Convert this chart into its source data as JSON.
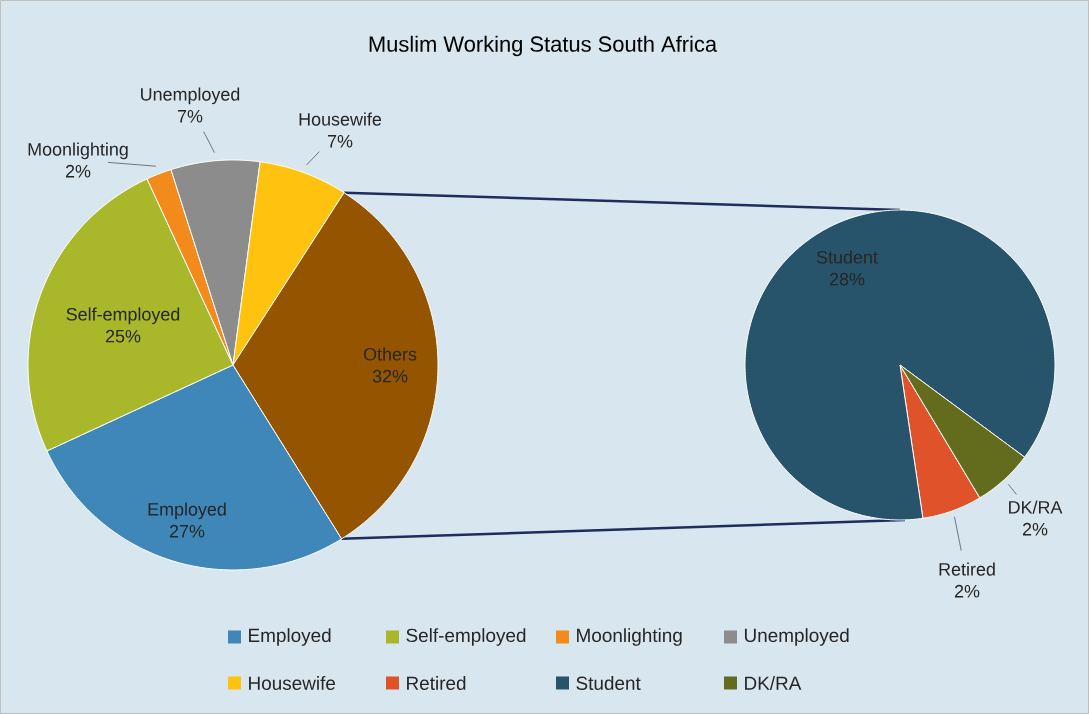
{
  "chart_data": [
    {
      "type": "pie",
      "title": "Muslim Working Status South Africa",
      "categories": [
        "Employed",
        "Self-employed",
        "Moonlighting",
        "Unemployed",
        "Housewife",
        "Others"
      ],
      "values": [
        27,
        25,
        2,
        7,
        7,
        32
      ],
      "colors": [
        "#3f87b8",
        "#a8b82a",
        "#f28a1c",
        "#8c8c8c",
        "#ffc20e",
        "#955400"
      ],
      "value_labels": [
        "27%",
        "25%",
        "2%",
        "7%",
        "7%",
        "32%"
      ],
      "legend": "bottom"
    },
    {
      "type": "pie",
      "categories": [
        "Retired",
        "Student",
        "DK/RA"
      ],
      "values": [
        2,
        28,
        2
      ],
      "colors": [
        "#e0522a",
        "#27536b",
        "#636b1c"
      ],
      "value_labels": [
        "2%",
        "28%",
        "2%"
      ],
      "legend": "bottom"
    }
  ]
}
